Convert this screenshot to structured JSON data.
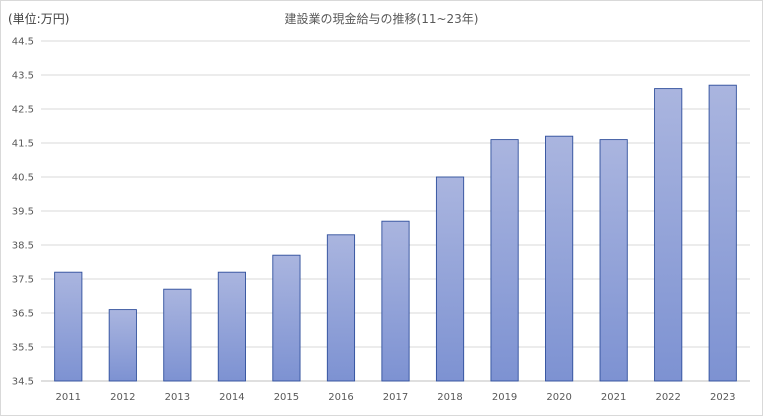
{
  "header": {
    "unit_label": "(単位:万円)",
    "title": "建設業の現金給与の推移(11~23年)"
  },
  "chart_data": {
    "type": "bar",
    "title": "建設業の現金給与の推移(11~23年)",
    "unit_label": "(単位:万円)",
    "categories": [
      "2011",
      "2012",
      "2013",
      "2014",
      "2015",
      "2016",
      "2017",
      "2018",
      "2019",
      "2020",
      "2021",
      "2022",
      "2023"
    ],
    "values": [
      37.7,
      36.6,
      37.2,
      37.7,
      38.2,
      38.8,
      39.2,
      40.5,
      41.6,
      41.7,
      41.6,
      43.1,
      43.2
    ],
    "ylim": [
      34.5,
      44.5
    ],
    "yticks": [
      34.5,
      35.5,
      36.5,
      37.5,
      38.5,
      39.5,
      40.5,
      41.5,
      42.5,
      43.5,
      44.5
    ],
    "ytick_labels": [
      "34.5",
      "35.5",
      "36.5",
      "37.5",
      "38.5",
      "39.5",
      "40.5",
      "41.5",
      "42.5",
      "43.5",
      "44.5"
    ],
    "grid": true,
    "bar_color_top": "#aab5df",
    "bar_color_bottom": "#7d92d2",
    "bar_edge_color": "#2f4f9c",
    "gridline_color": "#d9d9d9"
  }
}
